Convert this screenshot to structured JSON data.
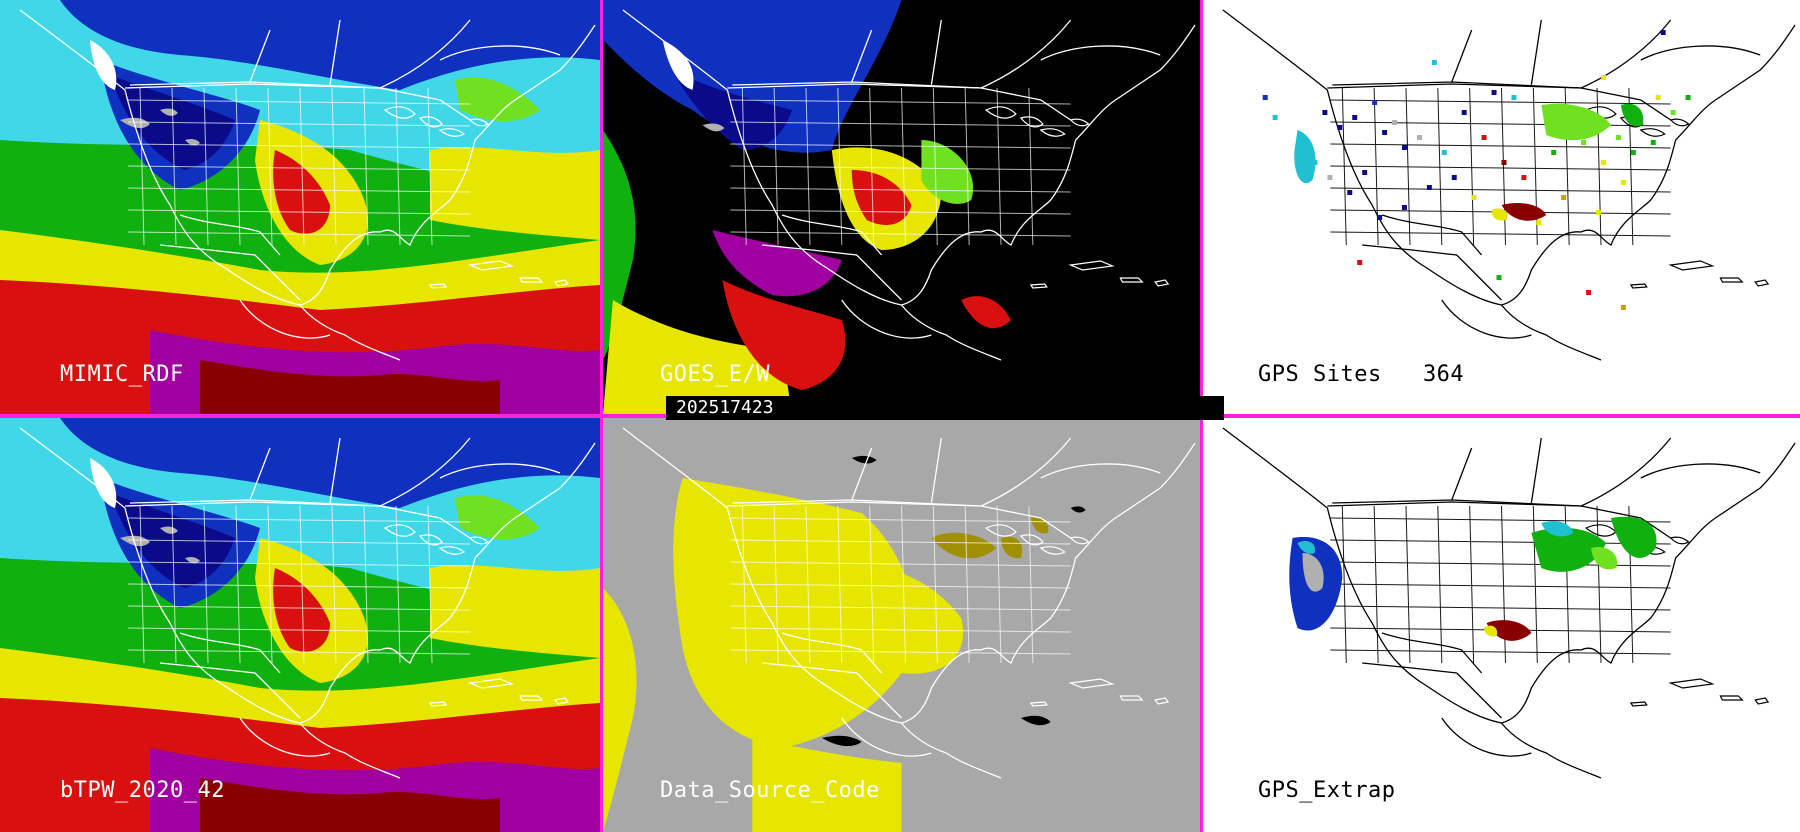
{
  "panels": [
    {
      "label": "MIMIC_RDF",
      "style": "tpw",
      "label_color": "#ffffff"
    },
    {
      "label": "GOES_E/W",
      "style": "goes",
      "label_color": "#ffffff"
    },
    {
      "label": "GPS Sites   364",
      "style": "gps_sites",
      "label_color": "#000000"
    },
    {
      "label": "bTPW_2020_42",
      "style": "tpw",
      "label_color": "#ffffff"
    },
    {
      "label": "Data_Source_Code",
      "style": "dsc",
      "label_color": "#ffffff"
    },
    {
      "label": "GPS_Extrap",
      "style": "gps_extrap",
      "label_color": "#000000"
    }
  ],
  "timestamp": "202517423",
  "colors": {
    "separator": "#ff22dd",
    "tpw_scale": [
      "#ffffff",
      "#b0b0b0",
      "#0a0a8a",
      "#1030c0",
      "#20c0d0",
      "#40d8e8",
      "#10b010",
      "#70e020",
      "#e6e600",
      "#c8a000",
      "#d81010",
      "#8a0000",
      "#a000a0"
    ],
    "dsc_background": "#a8a8a8",
    "dsc_highlight": "#e6e600",
    "dsc_secondary": "#a09000"
  }
}
